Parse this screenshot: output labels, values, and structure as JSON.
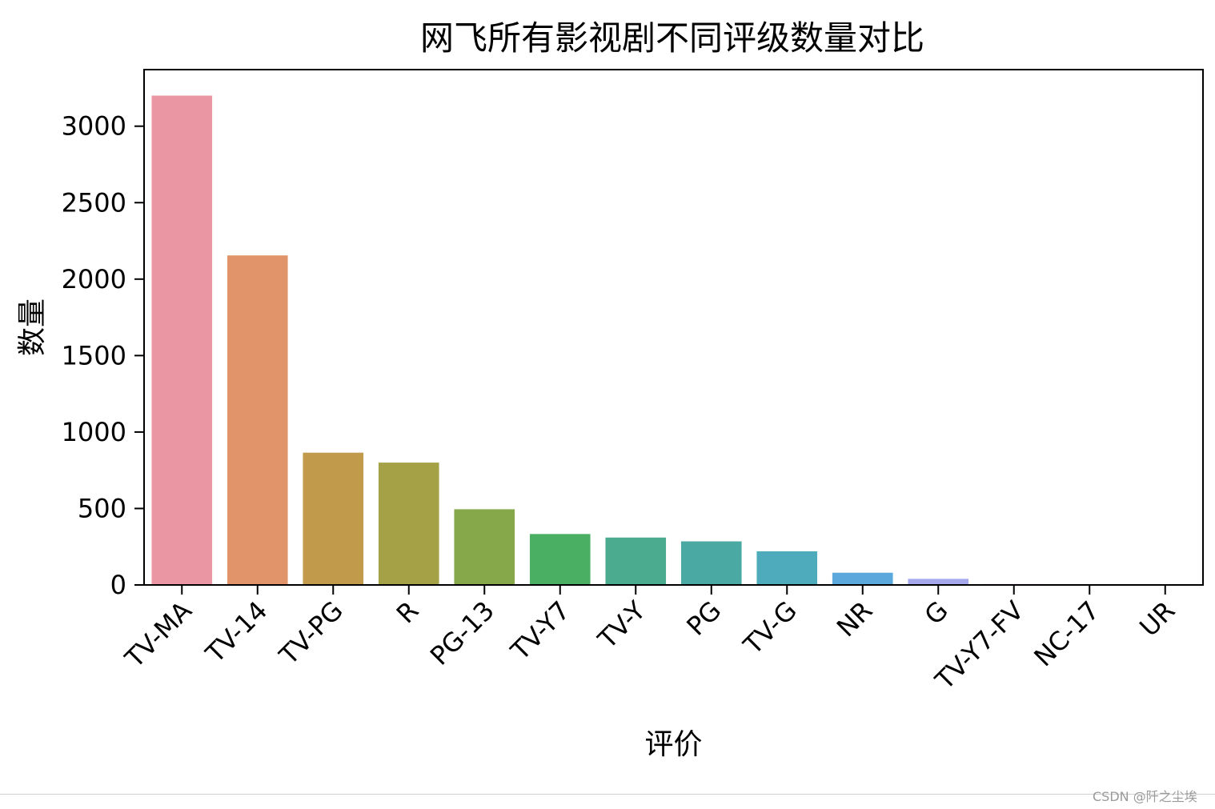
{
  "chart_data": {
    "type": "bar",
    "title": "网飞所有影视剧不同评级数量对比",
    "xlabel": "评价",
    "ylabel": "数量",
    "categories": [
      "TV-MA",
      "TV-14",
      "TV-PG",
      "R",
      "PG-13",
      "TV-Y7",
      "TV-Y",
      "PG",
      "TV-G",
      "NR",
      "G",
      "TV-Y7-FV",
      "NC-17",
      "UR"
    ],
    "values": [
      3200,
      2155,
      865,
      800,
      495,
      333,
      310,
      285,
      220,
      80,
      40,
      6,
      3,
      3
    ],
    "colors": [
      "#ea96a3",
      "#e1946a",
      "#c19a4c",
      "#a4a146",
      "#86a84a",
      "#4aae63",
      "#4bab8e",
      "#4aa9a3",
      "#4dabbc",
      "#5aa8dc",
      "#a6a8ec",
      "#dc97ea",
      "#ea90d6",
      "#ea94b8"
    ],
    "ylim": [
      0,
      3370
    ],
    "yticks": [
      0,
      500,
      1000,
      1500,
      2000,
      2500,
      3000
    ],
    "grid": false,
    "legend": "none"
  },
  "watermark": "CSDN @阡之尘埃"
}
